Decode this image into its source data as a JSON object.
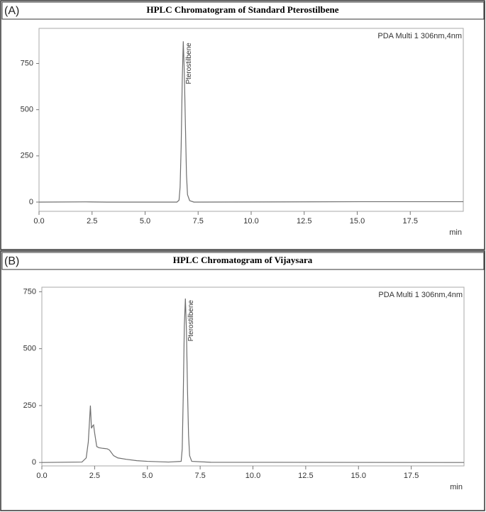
{
  "chart_data": [
    {
      "type": "line",
      "panel_label": "(A)",
      "title": "HPLC Chromatogram of Standard  Pterostilbene",
      "annotation": "PDA Multi 1 306nm,4nm",
      "peak_label": "Pterostilbene",
      "x_label": "min",
      "series": [
        {
          "name": "PDA Multi 1",
          "color": "#6e6e6e",
          "x": [
            0,
            2.2,
            3.2,
            6.5,
            6.6,
            6.65,
            6.7,
            6.75,
            6.8,
            6.85,
            6.9,
            6.95,
            7.0,
            7.1,
            7.3,
            15.3,
            20
          ],
          "values": [
            0,
            1,
            0,
            0,
            10,
            80,
            300,
            650,
            870,
            700,
            420,
            150,
            40,
            8,
            0,
            2,
            2
          ]
        }
      ],
      "xlim": [
        0,
        20
      ],
      "ylim": [
        -50,
        940
      ],
      "xticks": [
        {
          "value": 0,
          "label": "0.0"
        },
        2.5,
        {
          "value": 5,
          "label": "5.0"
        },
        7.5,
        {
          "value": 10,
          "label": "10.0"
        },
        12.5,
        {
          "value": 15,
          "label": "15.0"
        },
        17.5
      ],
      "yticks": [
        0,
        250,
        500,
        750
      ]
    },
    {
      "type": "line",
      "panel_label": "(B)",
      "title": "HPLC Chromatogram of Vijaysara",
      "annotation": "PDA Multi 1 306nm,4nm",
      "peak_label": "Pterostilbene",
      "x_label": "min",
      "series": [
        {
          "name": "PDA Multi 1",
          "color": "#6e6e6e",
          "x": [
            0,
            1.9,
            2.1,
            2.2,
            2.3,
            2.35,
            2.4,
            2.45,
            2.5,
            2.6,
            2.7,
            2.9,
            3.1,
            3.2,
            3.4,
            3.6,
            4.0,
            4.5,
            5.0,
            6.0,
            6.6,
            6.65,
            6.7,
            6.75,
            6.8,
            6.85,
            6.9,
            6.95,
            7.0,
            7.1,
            8.0,
            20
          ],
          "values": [
            0,
            2,
            20,
            90,
            250,
            150,
            160,
            165,
            130,
            70,
            65,
            62,
            60,
            55,
            30,
            20,
            14,
            8,
            5,
            2,
            5,
            60,
            300,
            600,
            720,
            580,
            320,
            120,
            30,
            5,
            1,
            0
          ]
        }
      ],
      "xlim": [
        0,
        20
      ],
      "ylim": [
        -15,
        770
      ],
      "xticks": [
        {
          "value": 0,
          "label": "0.0"
        },
        2.5,
        {
          "value": 5,
          "label": "5.0"
        },
        7.5,
        {
          "value": 10,
          "label": "10.0"
        },
        12.5,
        {
          "value": 15,
          "label": "15.0"
        },
        17.5
      ],
      "yticks": [
        0,
        250,
        500,
        750
      ]
    }
  ]
}
